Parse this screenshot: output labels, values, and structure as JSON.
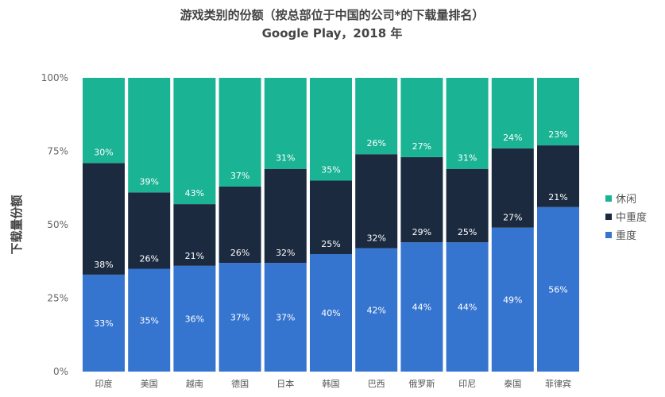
{
  "chart_data": {
    "type": "bar",
    "stacked": true,
    "title": "游戏类别的份额（按总部位于中国的公司*的下载量排名）",
    "subtitle": "Google Play，2018 年",
    "xlabel": "",
    "ylabel": "下载量份额",
    "ylim": [
      0,
      100
    ],
    "yticks": [
      "0%",
      "25%",
      "50%",
      "75%",
      "100%"
    ],
    "grid": false,
    "legend_position": "right",
    "categories": [
      "印度",
      "美国",
      "越南",
      "德国",
      "日本",
      "韩国",
      "巴西",
      "俄罗斯",
      "印尼",
      "泰国",
      "菲律宾"
    ],
    "series": [
      {
        "name": "重度",
        "color": "#3574cf",
        "values": [
          33,
          35,
          36,
          37,
          37,
          40,
          42,
          44,
          44,
          49,
          56
        ]
      },
      {
        "name": "中重度",
        "color": "#1b2a3f",
        "values": [
          38,
          26,
          21,
          26,
          32,
          25,
          32,
          29,
          25,
          27,
          21
        ]
      },
      {
        "name": "休闲",
        "color": "#1ab394",
        "values": [
          30,
          39,
          43,
          37,
          31,
          35,
          26,
          27,
          31,
          24,
          23
        ]
      }
    ],
    "legend_order": [
      "休闲",
      "中重度",
      "重度"
    ]
  }
}
